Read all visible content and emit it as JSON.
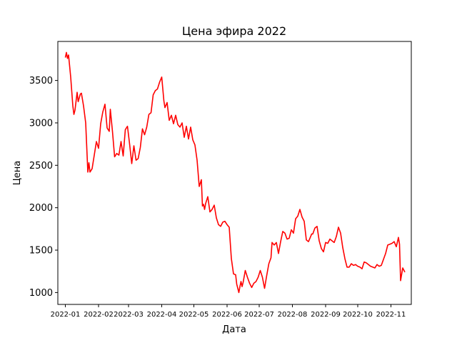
{
  "chart_data": {
    "type": "line",
    "title": "Цена эфира 2022",
    "xlabel": "Дата",
    "ylabel": "Цена",
    "grid": false,
    "line_color": "#ff0000",
    "x_range": [
      "2021-12-25",
      "2022-11-20"
    ],
    "ylim": [
      860,
      3960
    ],
    "x_ticks": [
      {
        "date": "2022-01-01",
        "label": "2022-01"
      },
      {
        "date": "2022-02-01",
        "label": "2022-02"
      },
      {
        "date": "2022-03-01",
        "label": "2022-03"
      },
      {
        "date": "2022-04-01",
        "label": "2022-04"
      },
      {
        "date": "2022-05-01",
        "label": "2022-05"
      },
      {
        "date": "2022-06-01",
        "label": "2022-06"
      },
      {
        "date": "2022-07-01",
        "label": "2022-07"
      },
      {
        "date": "2022-08-01",
        "label": "2022-08"
      },
      {
        "date": "2022-09-01",
        "label": "2022-09"
      },
      {
        "date": "2022-10-01",
        "label": "2022-10"
      },
      {
        "date": "2022-11-01",
        "label": "2022-11"
      }
    ],
    "y_ticks": [
      1000,
      1500,
      2000,
      2500,
      3000,
      3500
    ],
    "series": [
      {
        "x": [
          "2022-01-01",
          "2022-01-02",
          "2022-01-03",
          "2022-01-04",
          "2022-01-06",
          "2022-01-08",
          "2022-01-09",
          "2022-01-10",
          "2022-01-12",
          "2022-01-13",
          "2022-01-15",
          "2022-01-16",
          "2022-01-18",
          "2022-01-19",
          "2022-01-20",
          "2022-01-22",
          "2022-01-23",
          "2022-01-24",
          "2022-01-26",
          "2022-01-28",
          "2022-01-30",
          "2022-02-01",
          "2022-02-03",
          "2022-02-05",
          "2022-02-07",
          "2022-02-09",
          "2022-02-11",
          "2022-02-12",
          "2022-02-14",
          "2022-02-16",
          "2022-02-18",
          "2022-02-20",
          "2022-02-22",
          "2022-02-24",
          "2022-02-26",
          "2022-02-28",
          "2022-03-02",
          "2022-03-04",
          "2022-03-06",
          "2022-03-08",
          "2022-03-10",
          "2022-03-12",
          "2022-03-14",
          "2022-03-16",
          "2022-03-18",
          "2022-03-20",
          "2022-03-22",
          "2022-03-24",
          "2022-03-26",
          "2022-03-28",
          "2022-03-30",
          "2022-04-01",
          "2022-04-03",
          "2022-04-04",
          "2022-04-06",
          "2022-04-08",
          "2022-04-10",
          "2022-04-12",
          "2022-04-14",
          "2022-04-16",
          "2022-04-18",
          "2022-04-20",
          "2022-04-22",
          "2022-04-24",
          "2022-04-26",
          "2022-04-28",
          "2022-04-30",
          "2022-05-02",
          "2022-05-04",
          "2022-05-06",
          "2022-05-08",
          "2022-05-09",
          "2022-05-10",
          "2022-05-11",
          "2022-05-12",
          "2022-05-14",
          "2022-05-16",
          "2022-05-18",
          "2022-05-20",
          "2022-05-22",
          "2022-05-24",
          "2022-05-26",
          "2022-05-28",
          "2022-05-30",
          "2022-06-01",
          "2022-06-03",
          "2022-06-05",
          "2022-06-07",
          "2022-06-09",
          "2022-06-10",
          "2022-06-11",
          "2022-06-12",
          "2022-06-13",
          "2022-06-14",
          "2022-06-15",
          "2022-06-16",
          "2022-06-18",
          "2022-06-20",
          "2022-06-22",
          "2022-06-24",
          "2022-06-26",
          "2022-06-28",
          "2022-06-30",
          "2022-07-02",
          "2022-07-04",
          "2022-07-06",
          "2022-07-08",
          "2022-07-10",
          "2022-07-12",
          "2022-07-13",
          "2022-07-15",
          "2022-07-17",
          "2022-07-19",
          "2022-07-21",
          "2022-07-23",
          "2022-07-25",
          "2022-07-27",
          "2022-07-29",
          "2022-07-31",
          "2022-08-02",
          "2022-08-04",
          "2022-08-06",
          "2022-08-08",
          "2022-08-10",
          "2022-08-12",
          "2022-08-14",
          "2022-08-16",
          "2022-08-18",
          "2022-08-19",
          "2022-08-20",
          "2022-08-22",
          "2022-08-24",
          "2022-08-26",
          "2022-08-28",
          "2022-08-30",
          "2022-09-01",
          "2022-09-03",
          "2022-09-05",
          "2022-09-07",
          "2022-09-09",
          "2022-09-11",
          "2022-09-13",
          "2022-09-15",
          "2022-09-17",
          "2022-09-19",
          "2022-09-21",
          "2022-09-23",
          "2022-09-25",
          "2022-09-27",
          "2022-09-29",
          "2022-10-01",
          "2022-10-03",
          "2022-10-05",
          "2022-10-07",
          "2022-10-09",
          "2022-10-11",
          "2022-10-13",
          "2022-10-15",
          "2022-10-17",
          "2022-10-19",
          "2022-10-21",
          "2022-10-23",
          "2022-10-25",
          "2022-10-27",
          "2022-10-29",
          "2022-10-31",
          "2022-11-02",
          "2022-11-04",
          "2022-11-06",
          "2022-11-08",
          "2022-11-09",
          "2022-11-10",
          "2022-11-12",
          "2022-11-14"
        ],
        "values": [
          3770,
          3830,
          3760,
          3800,
          3540,
          3200,
          3100,
          3150,
          3360,
          3250,
          3340,
          3350,
          3200,
          3100,
          3000,
          2420,
          2530,
          2420,
          2460,
          2620,
          2780,
          2700,
          2990,
          3130,
          3220,
          2940,
          2900,
          3160,
          2900,
          2600,
          2640,
          2620,
          2780,
          2610,
          2920,
          2960,
          2750,
          2520,
          2730,
          2560,
          2580,
          2710,
          2930,
          2860,
          2950,
          3100,
          3120,
          3330,
          3380,
          3400,
          3480,
          3540,
          3260,
          3180,
          3240,
          3030,
          3090,
          2990,
          3090,
          2980,
          2950,
          3000,
          2830,
          2960,
          2810,
          2950,
          2800,
          2740,
          2560,
          2250,
          2330,
          2020,
          2040,
          1980,
          2050,
          2130,
          1950,
          1980,
          2030,
          1880,
          1800,
          1780,
          1830,
          1840,
          1800,
          1770,
          1400,
          1220,
          1210,
          1100,
          1050,
          1000,
          1070,
          1130,
          1070,
          1120,
          1260,
          1180,
          1110,
          1060,
          1110,
          1130,
          1180,
          1260,
          1180,
          1050,
          1200,
          1340,
          1410,
          1590,
          1560,
          1590,
          1460,
          1600,
          1720,
          1700,
          1630,
          1640,
          1740,
          1700,
          1870,
          1900,
          1980,
          1890,
          1840,
          1620,
          1600,
          1660,
          1690,
          1690,
          1760,
          1780,
          1610,
          1520,
          1480,
          1590,
          1580,
          1630,
          1610,
          1590,
          1660,
          1770,
          1700,
          1530,
          1400,
          1300,
          1300,
          1340,
          1320,
          1330,
          1310,
          1300,
          1280,
          1360,
          1350,
          1330,
          1310,
          1300,
          1290,
          1330,
          1310,
          1320,
          1390,
          1460,
          1560,
          1570,
          1580,
          1600,
          1540,
          1650,
          1570,
          1140,
          1290,
          1240
        ]
      }
    ]
  }
}
